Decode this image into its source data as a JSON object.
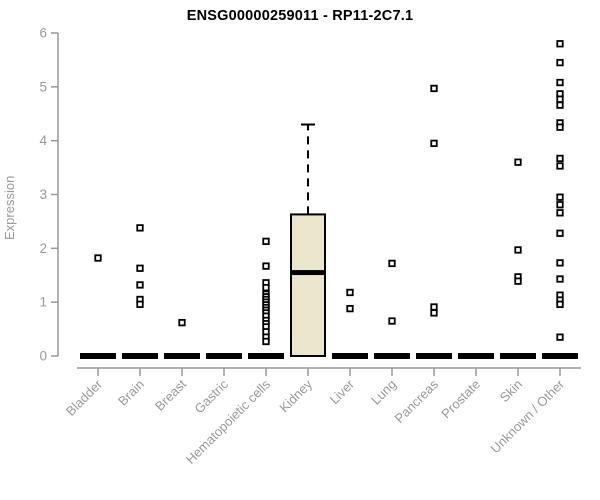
{
  "chart_data": {
    "type": "boxplot",
    "title": "ENSG00000259011 - RP11-2C7.1",
    "ylabel": "Expression",
    "ylim": [
      0,
      6
    ],
    "yticks": [
      0,
      1,
      2,
      3,
      4,
      5,
      6
    ],
    "grid": false,
    "legend": "none",
    "colors": {
      "box_fill": "#ece6cd",
      "box_stroke": "#000000",
      "median": "#000000",
      "zero_bar": "#000000",
      "point_stroke": "#000000",
      "point_fill": "#ffffff",
      "axis": "#999999",
      "tick_label": "#999999",
      "title": "#000000"
    },
    "categories": [
      "Bladder",
      "Brain",
      "Breast",
      "Gastric",
      "Hematopoietic cells",
      "Kidney",
      "Liver",
      "Lung",
      "Pancreas",
      "Prostate",
      "Skin",
      "Unknown / Other"
    ],
    "boxes": [
      {
        "category": "Bladder",
        "q1": 0,
        "median": 0,
        "q3": 0,
        "whisker_low": 0,
        "whisker_high": 0,
        "points": [
          1.82
        ]
      },
      {
        "category": "Brain",
        "q1": 0,
        "median": 0,
        "q3": 0,
        "whisker_low": 0,
        "whisker_high": 0,
        "points": [
          2.38,
          1.63,
          1.32,
          1.05,
          0.96
        ]
      },
      {
        "category": "Breast",
        "q1": 0,
        "median": 0,
        "q3": 0,
        "whisker_low": 0,
        "whisker_high": 0,
        "points": [
          0.62
        ]
      },
      {
        "category": "Gastric",
        "q1": 0,
        "median": 0,
        "q3": 0,
        "whisker_low": 0,
        "whisker_high": 0,
        "points": []
      },
      {
        "category": "Hematopoietic cells",
        "q1": 0,
        "median": 0,
        "q3": 0,
        "whisker_low": 0,
        "whisker_high": 0,
        "points": [
          2.13,
          1.67,
          1.36,
          1.27,
          1.15,
          1.1,
          1.05,
          1.0,
          0.95,
          0.9,
          0.85,
          0.8,
          0.74,
          0.66,
          0.6,
          0.54,
          0.45,
          0.35,
          0.27
        ]
      },
      {
        "category": "Kidney",
        "q1": 0,
        "median": 1.55,
        "q3": 2.63,
        "whisker_low": 0,
        "whisker_high": 4.3,
        "points": []
      },
      {
        "category": "Liver",
        "q1": 0,
        "median": 0,
        "q3": 0,
        "whisker_low": 0,
        "whisker_high": 0,
        "points": [
          1.18,
          0.88
        ]
      },
      {
        "category": "Lung",
        "q1": 0,
        "median": 0,
        "q3": 0,
        "whisker_low": 0,
        "whisker_high": 0,
        "points": [
          1.72,
          0.65
        ]
      },
      {
        "category": "Pancreas",
        "q1": 0,
        "median": 0,
        "q3": 0,
        "whisker_low": 0,
        "whisker_high": 0,
        "points": [
          4.97,
          3.95,
          0.91,
          0.8
        ]
      },
      {
        "category": "Prostate",
        "q1": 0,
        "median": 0,
        "q3": 0,
        "whisker_low": 0,
        "whisker_high": 0,
        "points": []
      },
      {
        "category": "Skin",
        "q1": 0,
        "median": 0,
        "q3": 0,
        "whisker_low": 0,
        "whisker_high": 0,
        "points": [
          3.6,
          1.97,
          1.47,
          1.39
        ]
      },
      {
        "category": "Unknown / Other",
        "q1": 0,
        "median": 0,
        "q3": 0,
        "whisker_low": 0,
        "whisker_high": 0,
        "points": [
          5.8,
          5.45,
          5.08,
          4.87,
          4.77,
          4.66,
          4.33,
          4.25,
          3.67,
          3.53,
          2.95,
          2.81,
          2.66,
          2.28,
          1.73,
          1.43,
          1.13,
          1.04,
          0.96,
          0.35
        ]
      }
    ]
  }
}
